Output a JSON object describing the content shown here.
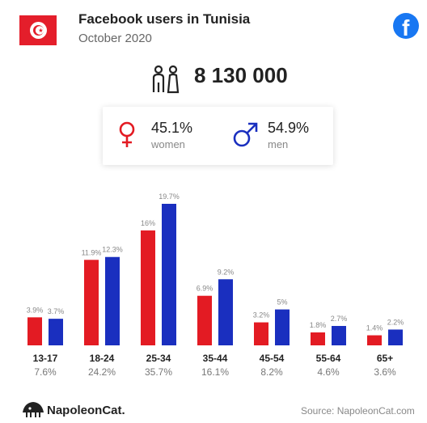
{
  "header": {
    "title": "Facebook users in Tunisia",
    "subtitle": "October 2020",
    "flag_icon": "tunisia-flag-icon",
    "brand_icon": "facebook-icon"
  },
  "total": {
    "value": "8 130 000",
    "icon": "people-icon"
  },
  "gender": {
    "women": {
      "pct": "45.1%",
      "label": "women",
      "icon": "female-symbol-icon",
      "color": "#e31b23"
    },
    "men": {
      "pct": "54.9%",
      "label": "men",
      "icon": "male-symbol-icon",
      "color": "#1a2fbf"
    }
  },
  "colors": {
    "women": "#e31b23",
    "men": "#1a2fbf",
    "facebook": "#1877f2"
  },
  "chart_data": {
    "type": "bar",
    "categories": [
      "13-17",
      "18-24",
      "25-34",
      "35-44",
      "45-54",
      "55-64",
      "65+"
    ],
    "category_shares": [
      "7.6%",
      "24.2%",
      "35.7%",
      "16.1%",
      "8.2%",
      "4.6%",
      "3.6%"
    ],
    "series": [
      {
        "values": [
          3.9,
          11.9,
          16,
          6.9,
          3.2,
          1.8,
          1.4
        ],
        "labels": [
          "3.9%",
          "11.9%",
          "16%",
          "6.9%",
          "3.2%",
          "1.8%",
          "1.4%"
        ],
        "color": "#e31b23"
      },
      {
        "values": [
          3.7,
          12.3,
          19.7,
          9.2,
          5,
          2.7,
          2.2
        ],
        "labels": [
          "3.7%",
          "12.3%",
          "19.7%",
          "9.2%",
          "5%",
          "2.7%",
          "2.2%"
        ],
        "color": "#1a2fbf"
      }
    ],
    "ylim": [
      0,
      19.7
    ],
    "grid": false,
    "legend": "none"
  },
  "footer": {
    "logo": "NapoleonCat.",
    "logo_icon": "napoleoncat-logo-icon",
    "source": "Source: NapoleonCat.com"
  }
}
